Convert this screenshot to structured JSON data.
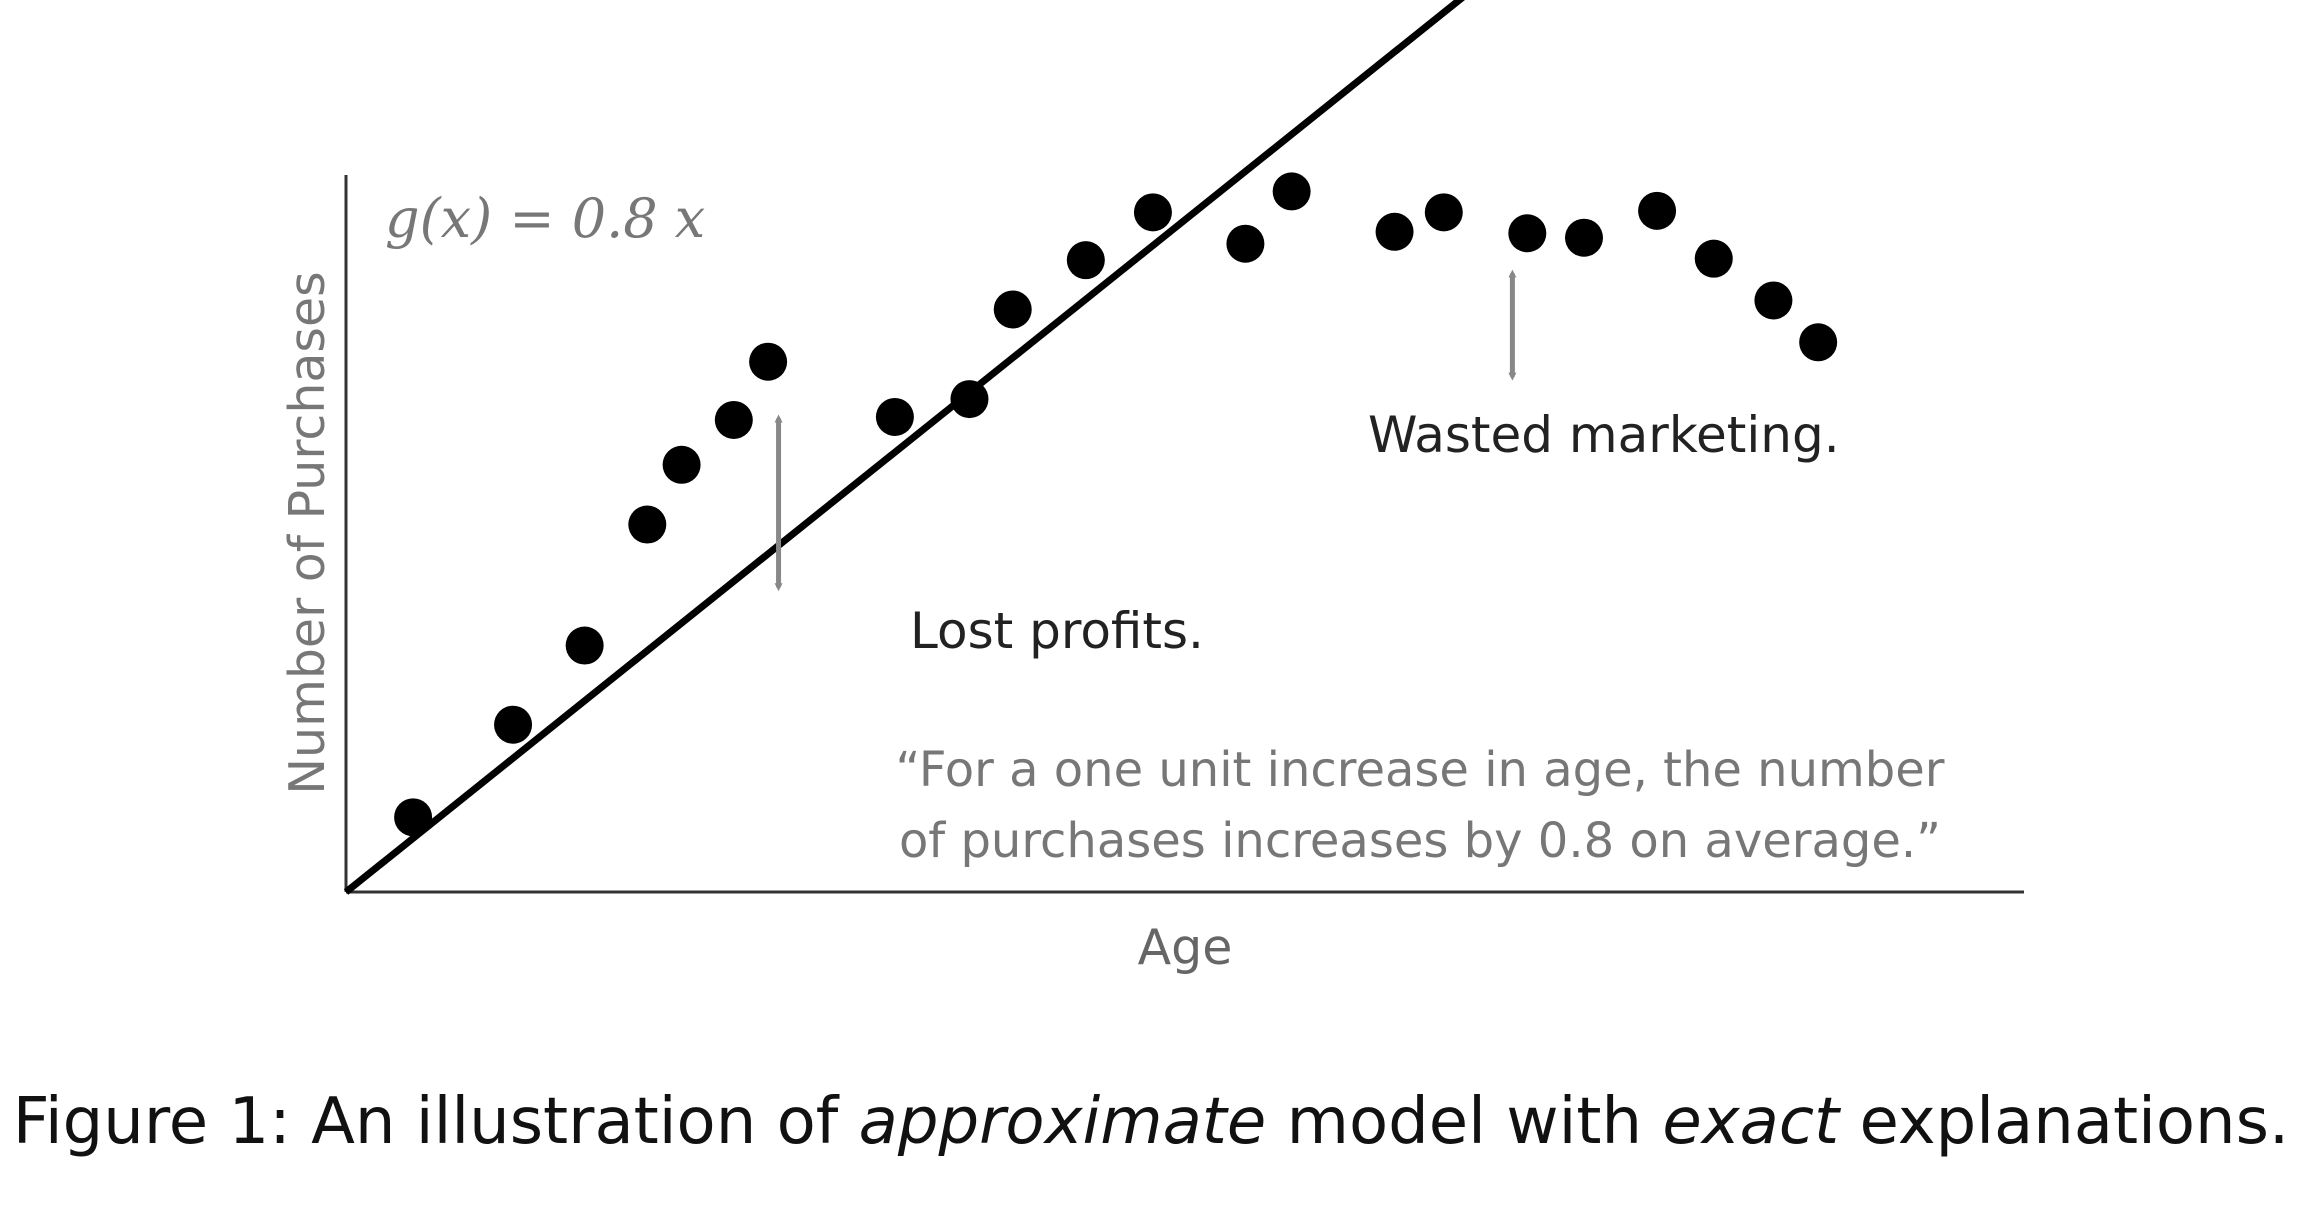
{
  "chart_data": {
    "type": "scatter",
    "xlabel": "Age",
    "ylabel": "Number of Purchases",
    "formula": "g(x) = 0.8 x",
    "points": [
      {
        "x": 0.45,
        "y": 0.5
      },
      {
        "x": 1.12,
        "y": 1.12
      },
      {
        "x": 1.6,
        "y": 1.65
      },
      {
        "x": 2.02,
        "y": 2.46
      },
      {
        "x": 2.25,
        "y": 2.86
      },
      {
        "x": 2.6,
        "y": 3.16
      },
      {
        "x": 2.83,
        "y": 3.55
      },
      {
        "x": 3.68,
        "y": 3.18
      },
      {
        "x": 4.18,
        "y": 3.3
      },
      {
        "x": 4.47,
        "y": 3.9
      },
      {
        "x": 4.96,
        "y": 4.23
      },
      {
        "x": 5.41,
        "y": 4.55
      },
      {
        "x": 6.03,
        "y": 4.34
      },
      {
        "x": 6.34,
        "y": 4.69
      },
      {
        "x": 7.03,
        "y": 4.42
      },
      {
        "x": 7.36,
        "y": 4.55
      },
      {
        "x": 7.92,
        "y": 4.41
      },
      {
        "x": 8.3,
        "y": 4.38
      },
      {
        "x": 8.79,
        "y": 4.56
      },
      {
        "x": 9.17,
        "y": 4.24
      },
      {
        "x": 9.57,
        "y": 3.96
      },
      {
        "x": 9.87,
        "y": 3.68
      }
    ],
    "line": {
      "slope": 0.8,
      "x_start": 0,
      "x_end": 8.45
    },
    "xlim": [
      0,
      11.25
    ],
    "ylim": [
      0,
      4.8
    ],
    "grid": false,
    "legend": "none",
    "annotations": [
      {
        "text": "Lost profits.",
        "arrow_x": 2.9,
        "arrow_y_from": 3.25,
        "arrow_y_to": 1.96
      },
      {
        "text": "Wasted marketing.",
        "arrow_x": 7.82,
        "arrow_y_from": 4.22,
        "arrow_y_to": 3.37
      }
    ],
    "quote": [
      "“For a one unit increase in age, the number",
      "of purchases increases by 0.8 on average.”"
    ]
  },
  "caption": {
    "prefix": "Figure 1: An illustration of ",
    "em1": "approximate",
    "middle": " model with ",
    "em2": "exact",
    "suffix": " explanations."
  }
}
